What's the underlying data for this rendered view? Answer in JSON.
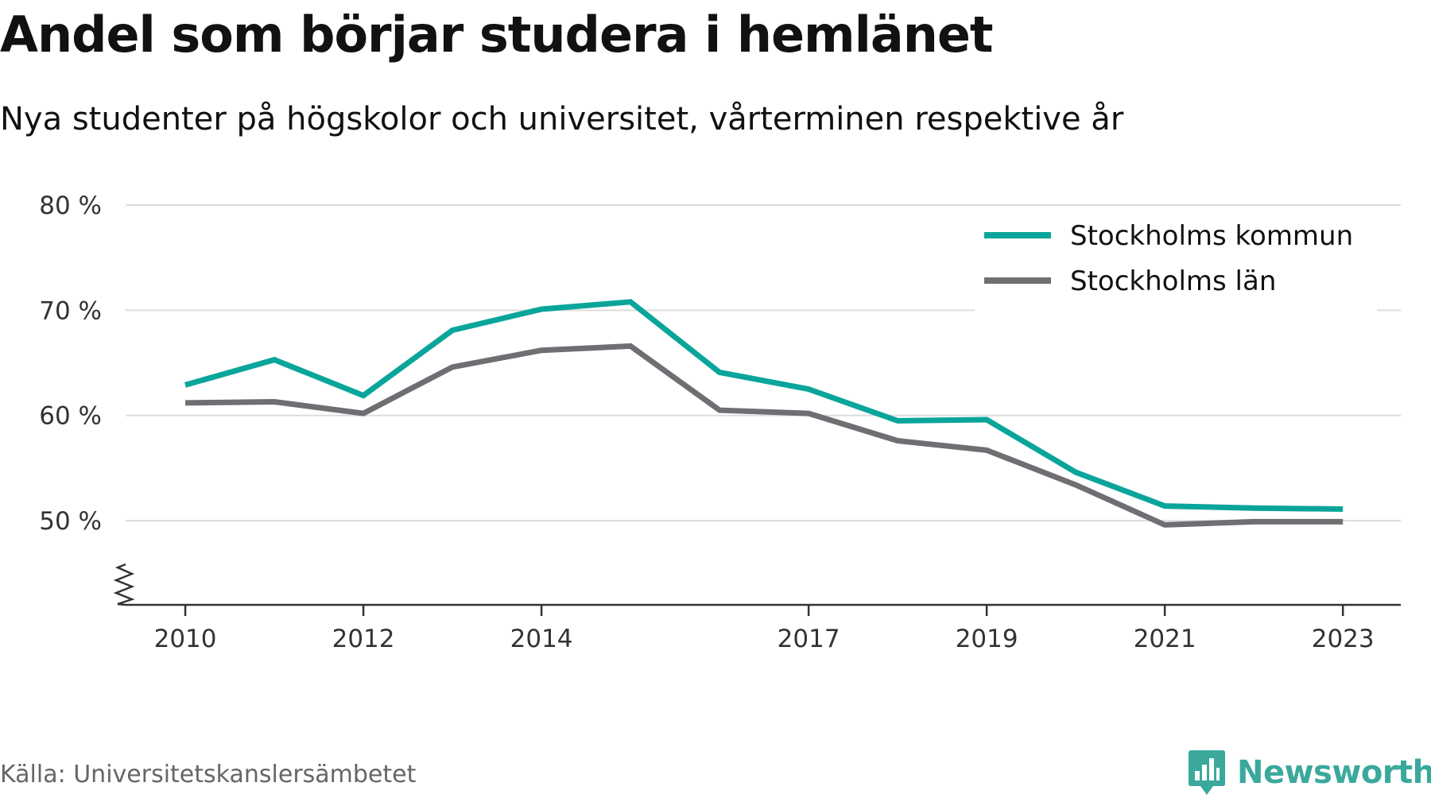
{
  "header": {
    "title": "Andel som börjar studera i hemlänet",
    "subtitle": "Nya studenter på högskolor och universitet, vårterminen respektive år"
  },
  "footer": {
    "source": "Källa: Universitetskanslersämbetet",
    "brand": "Newsworthy",
    "brand_icon": "bar-chart-speech-bubble-icon"
  },
  "colors": {
    "kommun": "#0aa59a",
    "lan": "#6f6e73",
    "grid": "#dddddd",
    "axis": "#333333",
    "tick_text": "#333333",
    "brand": "#3aa99c"
  },
  "chart_data": {
    "type": "line",
    "x": [
      2010,
      2011,
      2012,
      2013,
      2014,
      2015,
      2016,
      2017,
      2018,
      2019,
      2020,
      2021,
      2022,
      2023
    ],
    "xticks": [
      2010,
      2012,
      2014,
      2017,
      2019,
      2021,
      2023
    ],
    "xtick_labels": [
      "2010",
      "2012",
      "2014",
      "2017",
      "2019",
      "2021",
      "2023"
    ],
    "yticks": [
      50,
      60,
      70,
      80
    ],
    "ytick_labels": [
      "50 %",
      "60 %",
      "70 %",
      "80 %"
    ],
    "ylim": [
      42,
      80
    ],
    "xlim": [
      2009.33,
      2023.65
    ],
    "y_axis_break": true,
    "grid": true,
    "legend_position": "top-right",
    "series": [
      {
        "name": "Stockholms kommun",
        "color": "#0aa59a",
        "values": [
          62.9,
          65.3,
          61.9,
          68.1,
          70.1,
          70.8,
          64.1,
          62.5,
          59.5,
          59.6,
          54.6,
          51.4,
          51.2,
          51.1
        ]
      },
      {
        "name": "Stockholms län",
        "color": "#6f6e73",
        "values": [
          61.2,
          61.3,
          60.2,
          64.6,
          66.2,
          66.6,
          60.5,
          60.2,
          57.6,
          56.7,
          53.4,
          49.6,
          49.9,
          49.9
        ]
      }
    ]
  }
}
